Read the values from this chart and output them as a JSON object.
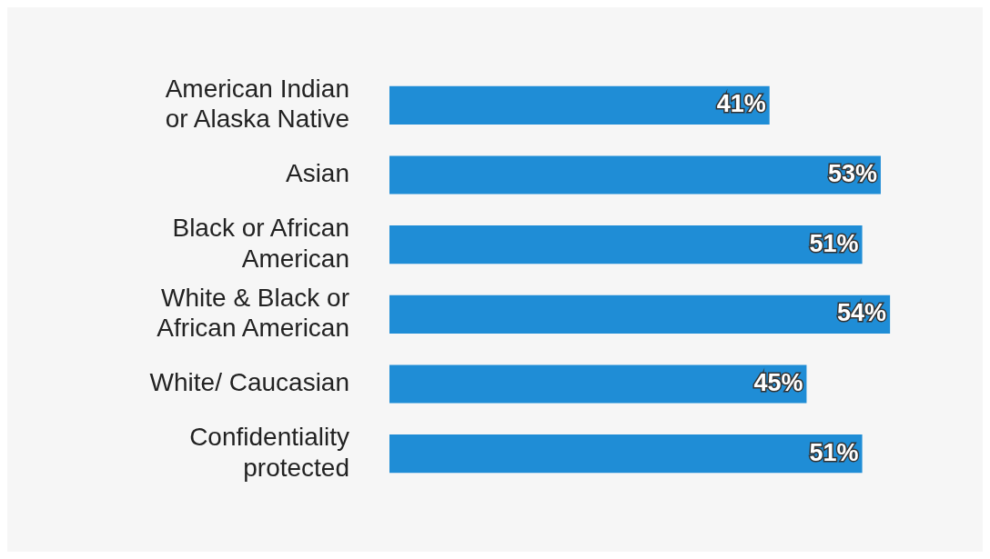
{
  "chart_data": {
    "type": "bar",
    "orientation": "horizontal",
    "categories": [
      "American Indian or Alaska Native",
      "Asian",
      "Black or African American",
      "White & Black or African American",
      "White/ Caucasian",
      "Confidentiality protected"
    ],
    "values": [
      41,
      53,
      51,
      54,
      45,
      51
    ],
    "value_labels": [
      "41%",
      "53%",
      "51%",
      "54%",
      "45%",
      "51%"
    ],
    "color": "#1f8dd6",
    "xlim": [
      0,
      64
    ],
    "legend": false
  }
}
